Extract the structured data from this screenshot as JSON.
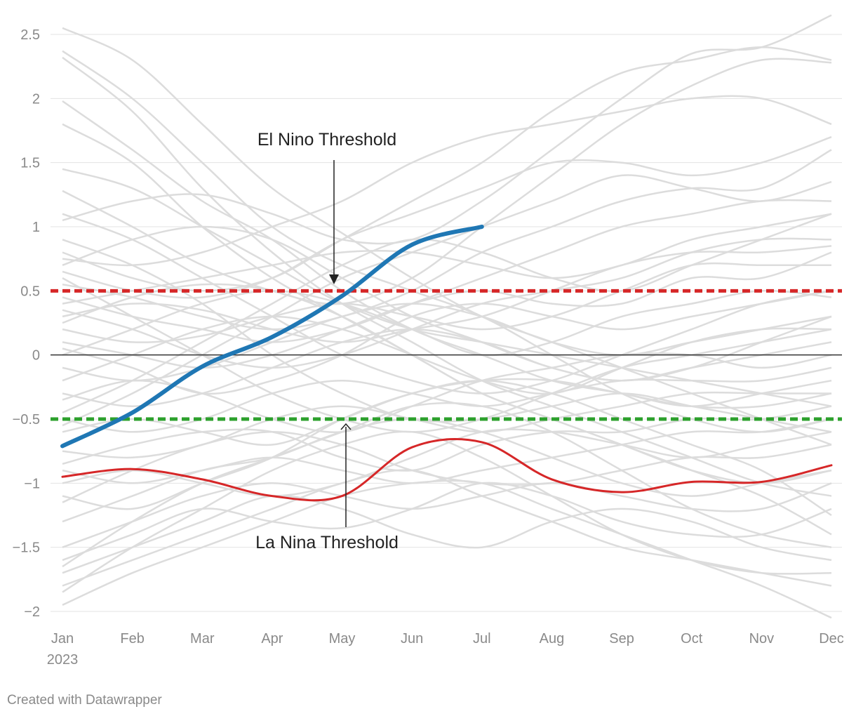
{
  "chart_data": {
    "type": "line",
    "title": "",
    "xlabel": "",
    "ylabel": "",
    "x_ticks": [
      "Jan",
      "Feb",
      "Mar",
      "Apr",
      "May",
      "Jun",
      "Jul",
      "Aug",
      "Sep",
      "Oct",
      "Nov",
      "Dec"
    ],
    "x_year_label": "2023",
    "y_ticks": [
      "2.5",
      "2",
      "1.5",
      "1",
      "0.5",
      "0",
      "−0.5",
      "−1",
      "−1.5",
      "−2"
    ],
    "ylim": [
      -2,
      2.5
    ],
    "grid": true,
    "legend": "none",
    "series": [
      {
        "color": "#1f77b4",
        "emphasis": "current",
        "values": [
          -0.71,
          -0.45,
          -0.09,
          0.14,
          0.46,
          0.86,
          1.0
        ]
      },
      {
        "color": "#d62728",
        "emphasis": "highlight",
        "values": [
          -0.95,
          -0.89,
          -0.97,
          -1.1,
          -1.1,
          -0.72,
          -0.68,
          -0.97,
          -1.07,
          -0.99,
          -0.99,
          -0.86
        ]
      }
    ],
    "background_series": [
      [
        2.55,
        2.3,
        1.8,
        1.3,
        0.95,
        0.6,
        0.3,
        0.1,
        -0.1,
        -0.3,
        -0.5,
        -0.7
      ],
      [
        2.37,
        2.0,
        1.5,
        1.0,
        0.7,
        0.5,
        0.3,
        0.0,
        -0.3,
        -0.5,
        -0.6,
        -0.5
      ],
      [
        2.32,
        1.9,
        1.3,
        0.8,
        0.4,
        0.1,
        -0.2,
        -0.4,
        -0.6,
        -0.8,
        -1.0,
        -1.1
      ],
      [
        1.98,
        1.6,
        1.2,
        0.9,
        0.5,
        0.2,
        0.0,
        -0.2,
        -0.3,
        -0.4,
        -0.4,
        -0.3
      ],
      [
        1.8,
        1.5,
        1.0,
        0.6,
        0.3,
        0.0,
        -0.3,
        -0.5,
        -0.7,
        -0.9,
        -1.0,
        -0.9
      ],
      [
        1.45,
        1.3,
        1.0,
        0.7,
        0.4,
        0.2,
        0.1,
        0.0,
        -0.1,
        -0.2,
        -0.3,
        -0.4
      ],
      [
        1.28,
        1.0,
        0.7,
        0.5,
        0.4,
        0.6,
        1.0,
        1.4,
        1.8,
        2.1,
        2.3,
        2.28
      ],
      [
        1.05,
        1.2,
        1.25,
        1.1,
        0.9,
        0.9,
        1.2,
        1.6,
        2.0,
        2.35,
        2.4,
        2.65
      ],
      [
        0.8,
        0.6,
        0.5,
        0.6,
        0.9,
        1.2,
        1.5,
        1.9,
        2.2,
        2.3,
        2.4,
        2.3
      ],
      [
        0.75,
        0.7,
        0.8,
        1.0,
        1.2,
        1.5,
        1.7,
        1.8,
        1.9,
        2.0,
        2.0,
        1.8
      ],
      [
        0.65,
        0.5,
        0.45,
        0.6,
        0.9,
        1.1,
        1.3,
        1.5,
        1.5,
        1.4,
        1.5,
        1.7
      ],
      [
        0.55,
        0.45,
        0.3,
        0.2,
        0.3,
        0.5,
        0.8,
        1.0,
        1.2,
        1.3,
        1.3,
        1.6
      ],
      [
        0.45,
        0.3,
        0.2,
        0.1,
        0.2,
        0.4,
        0.6,
        0.8,
        1.0,
        1.1,
        1.2,
        1.2
      ],
      [
        0.4,
        0.5,
        0.6,
        0.7,
        0.8,
        0.8,
        0.7,
        0.6,
        0.7,
        0.9,
        1.0,
        1.1
      ],
      [
        0.35,
        0.2,
        0.0,
        -0.1,
        0.0,
        0.2,
        0.4,
        0.5,
        0.6,
        0.8,
        0.9,
        0.9
      ],
      [
        0.3,
        0.4,
        0.35,
        0.2,
        0.1,
        0.2,
        0.3,
        0.5,
        0.7,
        0.8,
        0.8,
        0.85
      ],
      [
        0.2,
        0.1,
        0.15,
        0.3,
        0.4,
        0.3,
        0.2,
        0.3,
        0.5,
        0.7,
        0.7,
        0.7
      ],
      [
        0.1,
        0.0,
        -0.1,
        0.0,
        0.2,
        0.4,
        0.5,
        0.4,
        0.4,
        0.6,
        0.6,
        0.8
      ],
      [
        0.05,
        -0.1,
        -0.3,
        -0.2,
        0.0,
        0.3,
        0.4,
        0.3,
        0.2,
        0.3,
        0.4,
        0.5
      ],
      [
        0.0,
        0.2,
        0.4,
        0.5,
        0.4,
        0.2,
        0.0,
        0.1,
        0.3,
        0.4,
        0.5,
        0.45
      ],
      [
        -0.1,
        -0.2,
        -0.1,
        0.1,
        0.3,
        0.4,
        0.3,
        0.1,
        0.0,
        0.1,
        0.2,
        0.3
      ],
      [
        -0.2,
        0.0,
        0.2,
        0.3,
        0.2,
        0.0,
        -0.2,
        -0.3,
        -0.1,
        0.1,
        0.2,
        0.2
      ],
      [
        -0.3,
        -0.4,
        -0.3,
        -0.1,
        0.1,
        0.2,
        0.1,
        -0.1,
        -0.2,
        -0.1,
        0.0,
        0.1
      ],
      [
        -0.35,
        -0.2,
        -0.3,
        -0.5,
        -0.6,
        -0.4,
        -0.2,
        -0.1,
        0.0,
        0.0,
        -0.1,
        0.0
      ],
      [
        -0.5,
        -0.6,
        -0.5,
        -0.3,
        -0.2,
        -0.3,
        -0.4,
        -0.3,
        -0.2,
        -0.2,
        -0.2,
        -0.1
      ],
      [
        -0.6,
        -0.5,
        -0.6,
        -0.7,
        -0.5,
        -0.3,
        -0.2,
        -0.2,
        -0.3,
        -0.4,
        -0.3,
        -0.2
      ],
      [
        -0.75,
        -0.8,
        -0.7,
        -0.5,
        -0.4,
        -0.5,
        -0.6,
        -0.5,
        -0.4,
        -0.3,
        -0.3,
        -0.3
      ],
      [
        -0.85,
        -0.7,
        -0.6,
        -0.6,
        -0.8,
        -0.9,
        -0.7,
        -0.6,
        -0.6,
        -0.5,
        -0.5,
        -0.4
      ],
      [
        -0.9,
        -1.0,
        -0.9,
        -0.8,
        -0.9,
        -1.0,
        -0.9,
        -0.8,
        -0.7,
        -0.6,
        -0.6,
        -0.5
      ],
      [
        -1.0,
        -0.9,
        -1.0,
        -1.1,
        -1.0,
        -0.8,
        -0.6,
        -0.6,
        -0.7,
        -0.8,
        -0.7,
        -0.6
      ],
      [
        -1.15,
        -0.9,
        -0.7,
        -0.6,
        -0.7,
        -0.9,
        -1.0,
        -1.0,
        -0.9,
        -0.8,
        -0.8,
        -0.7
      ],
      [
        -1.3,
        -1.1,
        -0.9,
        -0.8,
        -0.6,
        -0.5,
        -0.6,
        -0.8,
        -1.0,
        -1.1,
        -1.0,
        -0.9
      ],
      [
        -1.5,
        -1.3,
        -1.1,
        -1.0,
        -1.1,
        -1.2,
        -1.1,
        -1.0,
        -1.1,
        -1.2,
        -1.2,
        -1.0
      ],
      [
        -1.6,
        -1.4,
        -1.2,
        -1.3,
        -1.35,
        -1.2,
        -1.0,
        -1.1,
        -1.3,
        -1.4,
        -1.4,
        -1.2
      ],
      [
        -1.7,
        -1.5,
        -1.3,
        -1.1,
        -1.2,
        -1.4,
        -1.5,
        -1.3,
        -1.2,
        -1.3,
        -1.5,
        -1.6
      ],
      [
        -1.8,
        -1.6,
        -1.4,
        -1.2,
        -1.0,
        -0.9,
        -1.1,
        -1.3,
        -1.5,
        -1.6,
        -1.7,
        -1.8
      ],
      [
        -1.95,
        -1.7,
        -1.5,
        -1.3,
        -1.1,
        -1.0,
        -1.0,
        -1.2,
        -1.4,
        -1.6,
        -1.8,
        -2.05
      ],
      [
        -1.85,
        -1.5,
        -1.2,
        -0.9,
        -0.7,
        -0.6,
        -0.8,
        -1.1,
        -1.4,
        -1.6,
        -1.7,
        -1.7
      ],
      [
        -1.65,
        -1.3,
        -1.0,
        -0.8,
        -0.6,
        -0.4,
        -0.4,
        -0.6,
        -0.9,
        -1.2,
        -1.4,
        -1.5
      ],
      [
        -1.1,
        -1.2,
        -1.0,
        -0.8,
        -0.5,
        -0.3,
        -0.2,
        -0.3,
        -0.5,
        -0.7,
        -0.9,
        -1.25
      ],
      [
        0.9,
        0.7,
        0.4,
        0.0,
        -0.3,
        -0.5,
        -0.5,
        -0.4,
        -0.3,
        -0.4,
        -0.5,
        -0.6
      ],
      [
        0.7,
        0.9,
        1.0,
        0.9,
        0.6,
        0.3,
        0.1,
        -0.1,
        -0.2,
        -0.1,
        0.1,
        0.3
      ],
      [
        1.1,
        0.9,
        0.6,
        0.3,
        0.0,
        -0.2,
        -0.3,
        -0.2,
        0.0,
        0.2,
        0.4,
        0.5
      ],
      [
        0.6,
        0.3,
        0.0,
        -0.3,
        -0.5,
        -0.6,
        -0.5,
        -0.3,
        -0.1,
        0.0,
        0.1,
        0.2
      ],
      [
        -0.45,
        -0.2,
        0.1,
        0.4,
        0.7,
        0.9,
        0.8,
        0.6,
        0.5,
        0.7,
        0.9,
        1.1
      ],
      [
        -0.55,
        -0.3,
        0.0,
        0.3,
        0.6,
        0.8,
        1.0,
        1.2,
        1.4,
        1.3,
        1.2,
        1.35
      ],
      [
        0.25,
        0.45,
        0.55,
        0.5,
        0.3,
        0.0,
        -0.3,
        -0.5,
        -0.7,
        -0.9,
        -1.1,
        -1.4
      ]
    ],
    "thresholds": [
      {
        "value": 0.5,
        "color": "#d62728",
        "label": "El Nino Threshold"
      },
      {
        "value": -0.5,
        "color": "#2ca02c",
        "label": "La Nina Threshold"
      }
    ]
  },
  "credit": "Created with Datawrapper"
}
